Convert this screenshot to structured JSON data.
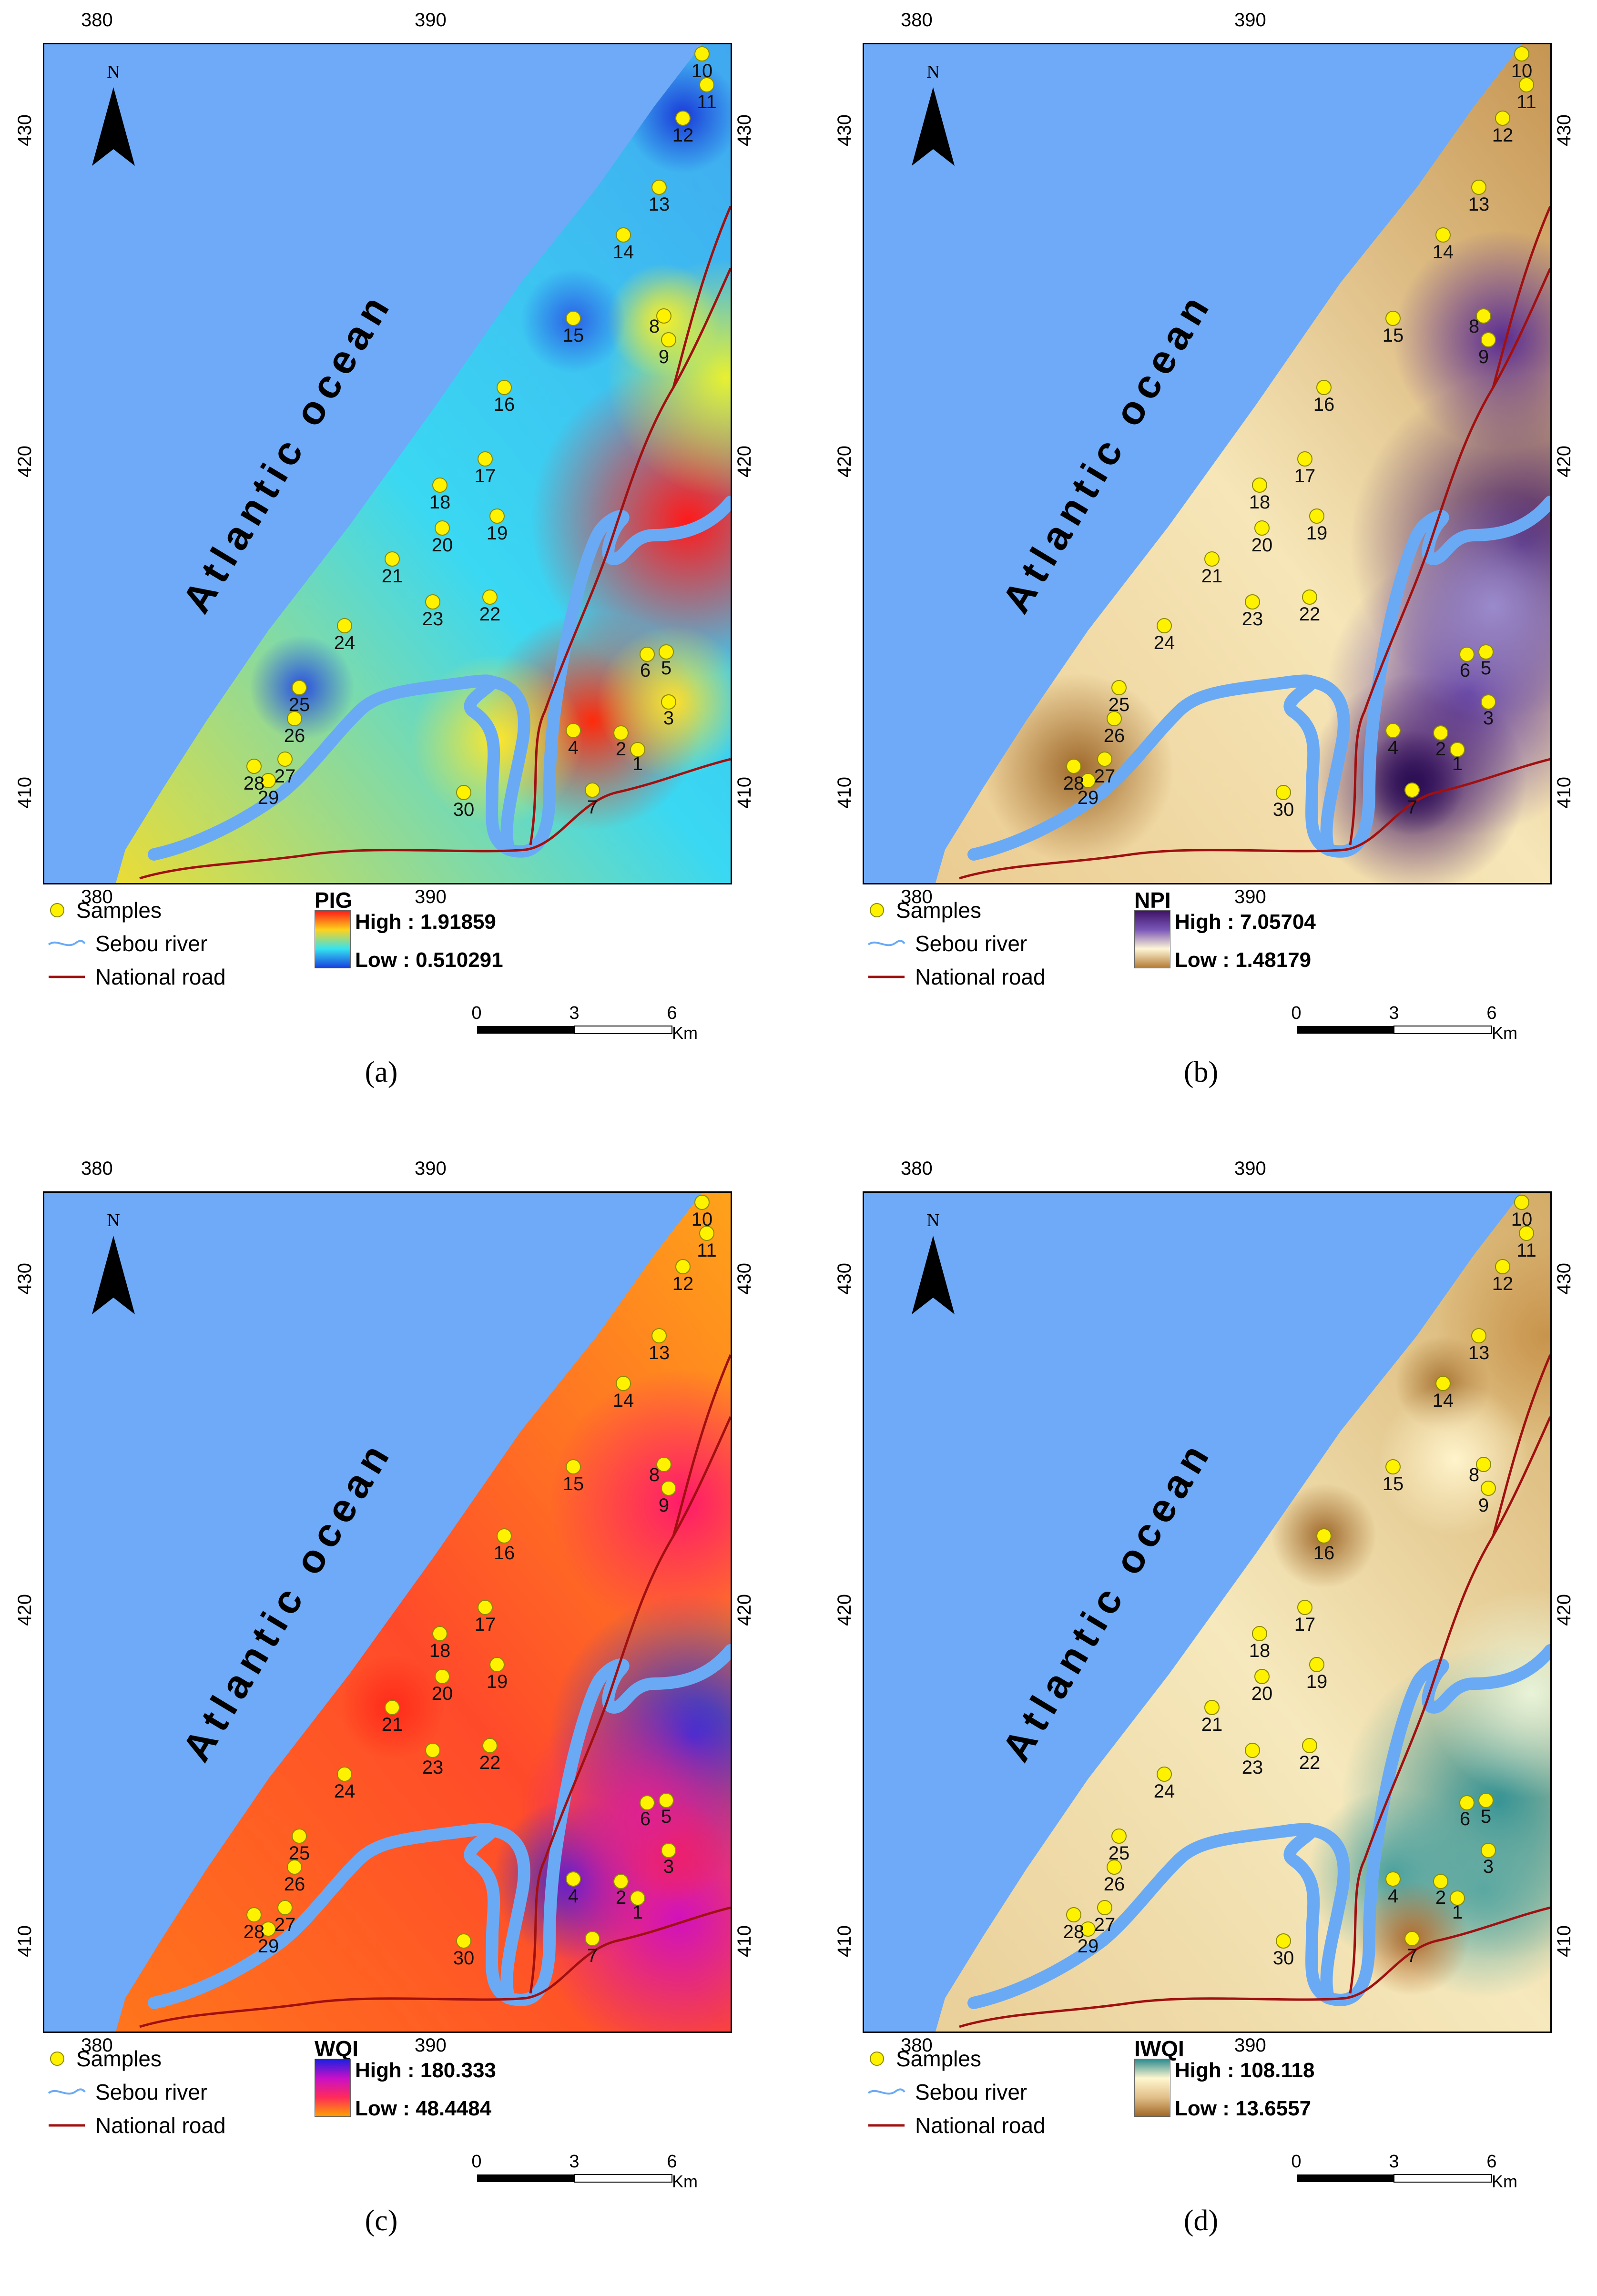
{
  "panels": [
    {
      "caption": "(a)",
      "index_name": "PIG",
      "high": "High : 1.91859",
      "low": "Low : 0.510291",
      "ramp": [
        "#ff1a1a",
        "#ffd21a",
        "#35e3f0",
        "#1840e0"
      ],
      "theme": "pig"
    },
    {
      "caption": "(b)",
      "index_name": "NPI",
      "high": "High : 7.05704",
      "low": "Low : 1.48179",
      "ramp": [
        "#3e1367",
        "#7a56b8",
        "#fff6d6",
        "#b47b35"
      ],
      "theme": "npi"
    },
    {
      "caption": "(c)",
      "index_name": "WQI",
      "high": "High : 180.333",
      "low": "Low : 48.4484",
      "ramp": [
        "#1a20e0",
        "#c810c8",
        "#ff2a5a",
        "#ffa000"
      ],
      "theme": "wqi"
    },
    {
      "caption": "(d)",
      "index_name": "IWQI",
      "high": "High : 108.118",
      "low": "Low : 13.6557",
      "ramp": [
        "#2a8a8e",
        "#fff7cf",
        "#e2c08a",
        "#a06826"
      ],
      "theme": "iwqi"
    }
  ],
  "common": {
    "x_ticks": [
      "380",
      "390"
    ],
    "y_ticks": [
      "430",
      "420",
      "410"
    ],
    "north": "N",
    "ocean": "Atlantic ocean",
    "legend_samples": "Samples",
    "legend_river": "Sebou river",
    "legend_road": "National road",
    "scale_ticks": [
      "0",
      "3",
      "6"
    ],
    "scale_unit": "Km",
    "colors": {
      "sample_fill": "#fff200",
      "river": "#6aaaf5",
      "road": "#a01010",
      "ocean": "#6eaaf7"
    }
  },
  "samples": [
    "1",
    "2",
    "3",
    "4",
    "5",
    "6",
    "7",
    "8",
    "9",
    "10",
    "11",
    "12",
    "13",
    "14",
    "15",
    "16",
    "17",
    "18",
    "19",
    "20",
    "21",
    "22",
    "23",
    "24",
    "25",
    "26",
    "27",
    "28",
    "29",
    "30"
  ]
}
